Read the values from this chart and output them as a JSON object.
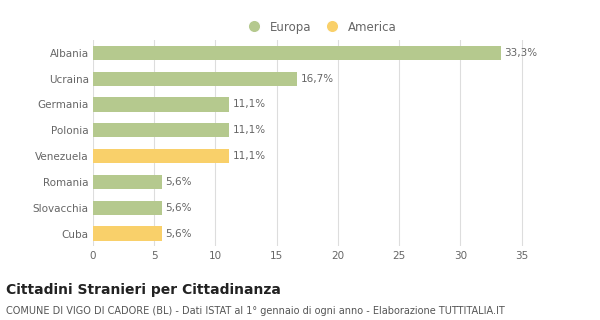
{
  "categories": [
    "Albania",
    "Ucraina",
    "Germania",
    "Polonia",
    "Venezuela",
    "Romania",
    "Slovacchia",
    "Cuba"
  ],
  "values": [
    33.3,
    16.7,
    11.1,
    11.1,
    11.1,
    5.6,
    5.6,
    5.6
  ],
  "labels": [
    "33,3%",
    "16,7%",
    "11,1%",
    "11,1%",
    "11,1%",
    "5,6%",
    "5,6%",
    "5,6%"
  ],
  "colors": [
    "#b5c98e",
    "#b5c98e",
    "#b5c98e",
    "#b5c98e",
    "#f9d06a",
    "#b5c98e",
    "#b5c98e",
    "#f9d06a"
  ],
  "legend": [
    {
      "label": "Europa",
      "color": "#b5c98e"
    },
    {
      "label": "America",
      "color": "#f9d06a"
    }
  ],
  "xlim": [
    0,
    37
  ],
  "xticks": [
    0,
    5,
    10,
    15,
    20,
    25,
    30,
    35
  ],
  "title": "Cittadini Stranieri per Cittadinanza",
  "subtitle": "COMUNE DI VIGO DI CADORE (BL) - Dati ISTAT al 1° gennaio di ogni anno - Elaborazione TUTTITALIA.IT",
  "background_color": "#ffffff",
  "grid_color": "#dddddd",
  "bar_height": 0.55,
  "label_fontsize": 7.5,
  "tick_fontsize": 7.5,
  "title_fontsize": 10,
  "subtitle_fontsize": 7.0,
  "legend_fontsize": 8.5
}
